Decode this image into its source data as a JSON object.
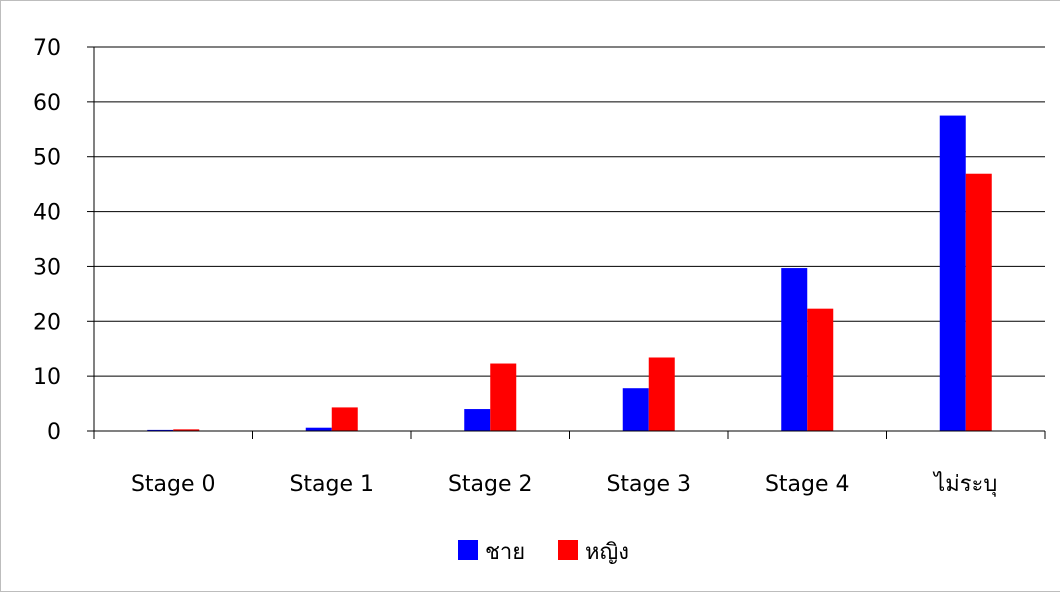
{
  "chart_data": {
    "type": "bar",
    "categories": [
      "Stage 0",
      "Stage 1",
      "Stage 2",
      "Stage 3",
      "Stage 4",
      "ไม่ระบุ"
    ],
    "series": [
      {
        "name": "ชาย",
        "color": "#0000ff",
        "values": [
          0.2,
          0.6,
          4.0,
          7.8,
          29.7,
          57.5
        ]
      },
      {
        "name": "หญิง",
        "color": "#ff0000",
        "values": [
          0.3,
          4.3,
          12.3,
          13.4,
          22.3,
          46.9
        ]
      }
    ],
    "ylim": [
      0,
      70
    ],
    "yticks": [
      "0",
      "10",
      "20",
      "30",
      "40",
      "50",
      "60",
      "70"
    ],
    "title": "",
    "xlabel": "",
    "ylabel": "",
    "grid": true,
    "legend_position": "bottom"
  }
}
